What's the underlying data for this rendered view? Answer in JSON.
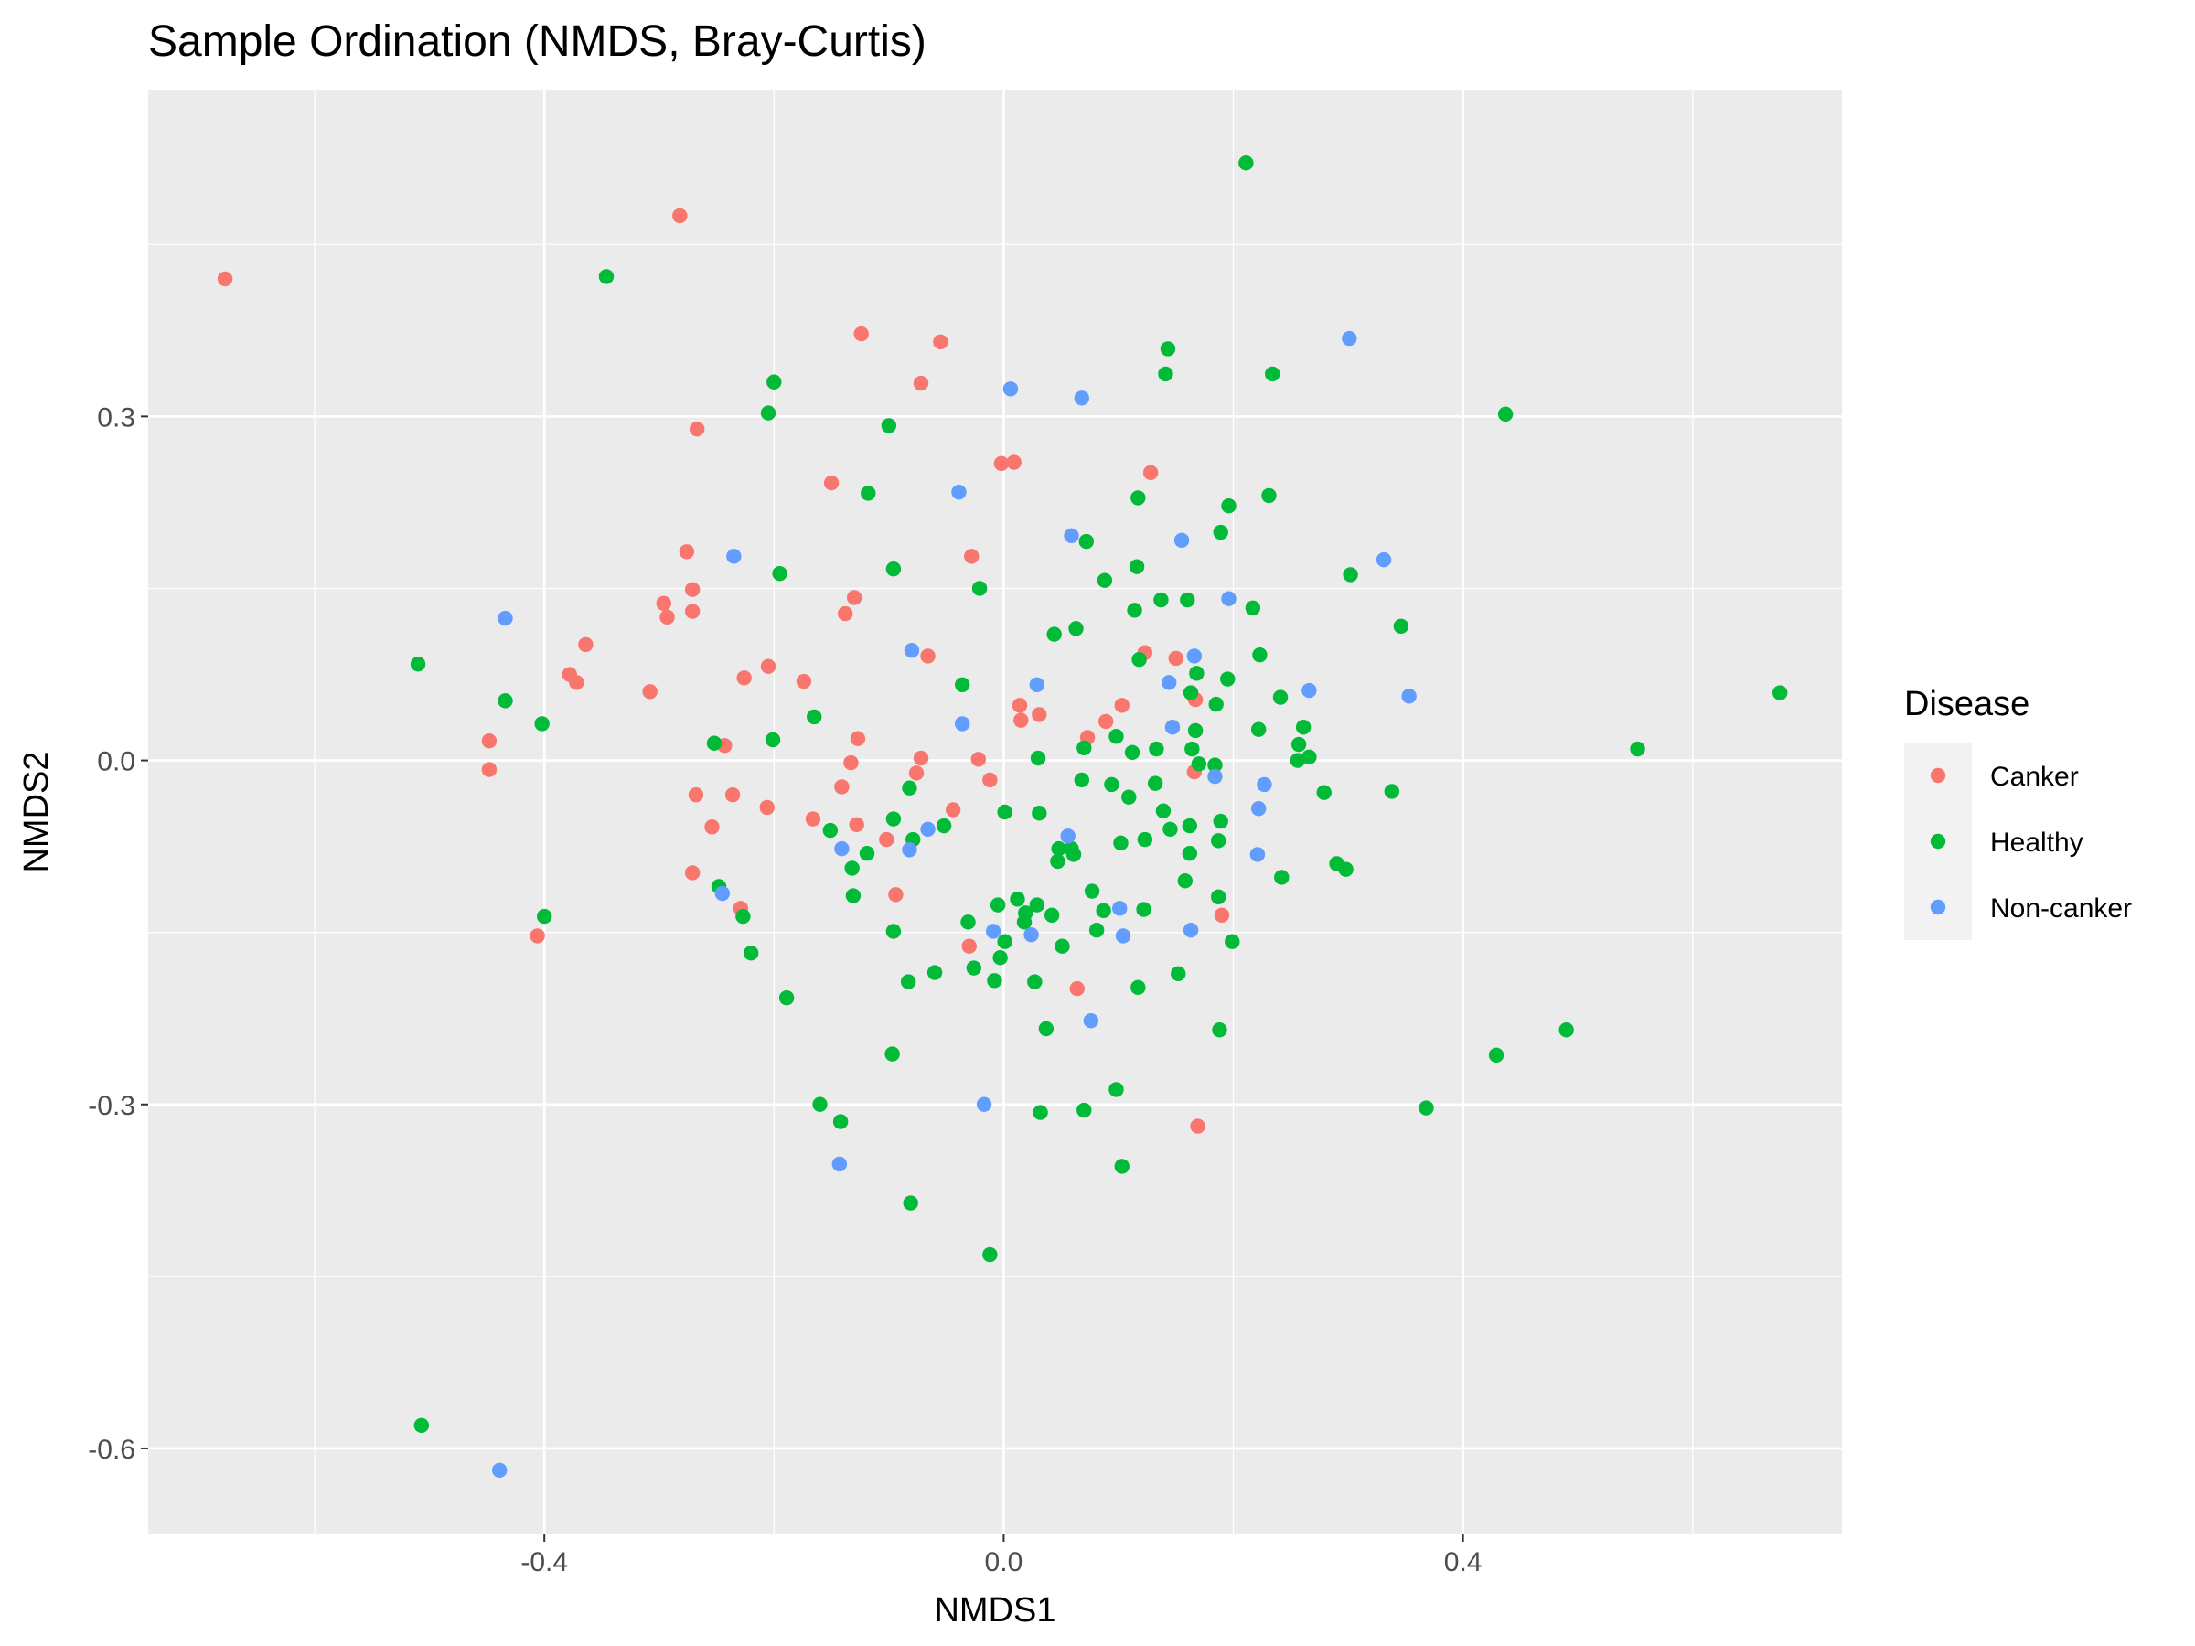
{
  "chart_data": {
    "type": "scatter",
    "title": "Sample Ordination (NMDS, Bray-Curtis)",
    "xlabel": "NMDS1",
    "ylabel": "NMDS2",
    "xlim": [
      -0.745,
      0.73
    ],
    "ylim": [
      -0.675,
      0.585
    ],
    "xticks": [
      -0.4,
      0.0,
      0.4
    ],
    "xtick_labels": [
      "-0.4",
      "0.0",
      "0.4"
    ],
    "yticks": [
      -0.6,
      -0.3,
      0.0,
      0.3
    ],
    "ytick_labels": [
      "-0.6",
      "-0.3",
      "0.0",
      "0.3"
    ],
    "x_minor": [
      -0.6,
      -0.2,
      0.2,
      0.6
    ],
    "y_minor": [
      -0.45,
      -0.15,
      0.15,
      0.45
    ],
    "grid": true,
    "panel_background": "#ebebeb",
    "legend": {
      "title": "Disease",
      "position": "right"
    },
    "series": [
      {
        "name": "Canker",
        "color": "#f8766d",
        "points": [
          [
            -0.678,
            0.42
          ],
          [
            -0.282,
            0.475
          ],
          [
            -0.124,
            0.372
          ],
          [
            -0.055,
            0.365
          ],
          [
            -0.072,
            0.329
          ],
          [
            -0.267,
            0.289
          ],
          [
            -0.15,
            0.242
          ],
          [
            -0.002,
            0.259
          ],
          [
            0.009,
            0.26
          ],
          [
            0.128,
            0.251
          ],
          [
            -0.276,
            0.182
          ],
          [
            -0.028,
            0.178
          ],
          [
            -0.13,
            0.142
          ],
          [
            -0.138,
            0.128
          ],
          [
            -0.296,
            0.137
          ],
          [
            -0.293,
            0.125
          ],
          [
            -0.271,
            0.149
          ],
          [
            -0.271,
            0.13
          ],
          [
            -0.364,
            0.101
          ],
          [
            -0.378,
            0.075
          ],
          [
            -0.372,
            0.068
          ],
          [
            -0.308,
            0.06
          ],
          [
            -0.066,
            0.091
          ],
          [
            -0.205,
            0.082
          ],
          [
            -0.226,
            0.072
          ],
          [
            -0.174,
            0.069
          ],
          [
            0.014,
            0.048
          ],
          [
            0.031,
            0.04
          ],
          [
            0.103,
            0.048
          ],
          [
            0.015,
            0.035
          ],
          [
            0.089,
            0.034
          ],
          [
            0.073,
            0.02
          ],
          [
            0.123,
            0.094
          ],
          [
            0.15,
            0.089
          ],
          [
            0.167,
            0.053
          ],
          [
            -0.448,
            0.017
          ],
          [
            -0.127,
            0.019
          ],
          [
            -0.243,
            0.013
          ],
          [
            -0.448,
            -0.008
          ],
          [
            -0.072,
            0.002
          ],
          [
            -0.022,
            0.001
          ],
          [
            -0.133,
            -0.002
          ],
          [
            -0.076,
            -0.011
          ],
          [
            -0.012,
            -0.017
          ],
          [
            -0.141,
            -0.023
          ],
          [
            -0.268,
            -0.03
          ],
          [
            -0.236,
            -0.03
          ],
          [
            -0.206,
            -0.041
          ],
          [
            -0.166,
            -0.051
          ],
          [
            -0.128,
            -0.056
          ],
          [
            -0.254,
            -0.058
          ],
          [
            -0.044,
            -0.043
          ],
          [
            -0.102,
            -0.069
          ],
          [
            0.166,
            -0.01
          ],
          [
            -0.271,
            -0.098
          ],
          [
            -0.094,
            -0.117
          ],
          [
            -0.229,
            -0.129
          ],
          [
            -0.406,
            -0.153
          ],
          [
            0.19,
            -0.135
          ],
          [
            -0.03,
            -0.162
          ],
          [
            0.064,
            -0.199
          ],
          [
            0.169,
            -0.319
          ]
        ]
      },
      {
        "name": "Healthy",
        "color": "#00ba38",
        "points": [
          [
            0.211,
            0.521
          ],
          [
            -0.346,
            0.422
          ],
          [
            0.143,
            0.359
          ],
          [
            0.141,
            0.337
          ],
          [
            0.234,
            0.337
          ],
          [
            -0.2,
            0.33
          ],
          [
            0.437,
            0.302
          ],
          [
            -0.205,
            0.303
          ],
          [
            -0.1,
            0.292
          ],
          [
            -0.118,
            0.233
          ],
          [
            0.117,
            0.229
          ],
          [
            0.231,
            0.231
          ],
          [
            0.196,
            0.222
          ],
          [
            0.189,
            0.199
          ],
          [
            0.072,
            0.191
          ],
          [
            -0.195,
            0.163
          ],
          [
            0.116,
            0.169
          ],
          [
            -0.096,
            0.167
          ],
          [
            0.302,
            0.162
          ],
          [
            0.088,
            0.157
          ],
          [
            -0.021,
            0.15
          ],
          [
            0.137,
            0.14
          ],
          [
            0.16,
            0.14
          ],
          [
            0.217,
            0.133
          ],
          [
            0.114,
            0.131
          ],
          [
            0.063,
            0.115
          ],
          [
            0.346,
            0.117
          ],
          [
            0.044,
            0.11
          ],
          [
            0.118,
            0.088
          ],
          [
            0.223,
            0.092
          ],
          [
            -0.51,
            0.084
          ],
          [
            0.195,
            0.071
          ],
          [
            0.168,
            0.076
          ],
          [
            -0.036,
            0.066
          ],
          [
            0.163,
            0.059
          ],
          [
            0.241,
            0.055
          ],
          [
            -0.434,
            0.052
          ],
          [
            0.185,
            0.049
          ],
          [
            0.676,
            0.059
          ],
          [
            -0.402,
            0.032
          ],
          [
            -0.165,
            0.038
          ],
          [
            0.261,
            0.029
          ],
          [
            0.222,
            0.027
          ],
          [
            0.167,
            0.026
          ],
          [
            -0.201,
            0.018
          ],
          [
            0.098,
            0.021
          ],
          [
            0.552,
            0.01
          ],
          [
            0.257,
            0.014
          ],
          [
            0.07,
            0.011
          ],
          [
            0.133,
            0.01
          ],
          [
            0.164,
            0.01
          ],
          [
            -0.252,
            0.015
          ],
          [
            0.112,
            0.007
          ],
          [
            0.03,
            0.002
          ],
          [
            0.266,
            0.003
          ],
          [
            0.256,
            0.0
          ],
          [
            0.17,
            -0.003
          ],
          [
            0.184,
            -0.004
          ],
          [
            0.068,
            -0.017
          ],
          [
            0.094,
            -0.021
          ],
          [
            0.132,
            -0.02
          ],
          [
            -0.082,
            -0.024
          ],
          [
            0.338,
            -0.027
          ],
          [
            0.279,
            -0.028
          ],
          [
            0.109,
            -0.032
          ],
          [
            0.001,
            -0.045
          ],
          [
            0.031,
            -0.046
          ],
          [
            0.139,
            -0.044
          ],
          [
            -0.096,
            -0.051
          ],
          [
            0.189,
            -0.053
          ],
          [
            -0.151,
            -0.061
          ],
          [
            -0.052,
            -0.057
          ],
          [
            0.145,
            -0.06
          ],
          [
            0.162,
            -0.057
          ],
          [
            0.123,
            -0.069
          ],
          [
            -0.079,
            -0.069
          ],
          [
            0.048,
            -0.077
          ],
          [
            0.059,
            -0.077
          ],
          [
            0.102,
            -0.072
          ],
          [
            0.187,
            -0.07
          ],
          [
            -0.119,
            -0.081
          ],
          [
            0.162,
            -0.081
          ],
          [
            0.047,
            -0.088
          ],
          [
            0.061,
            -0.082
          ],
          [
            -0.132,
            -0.094
          ],
          [
            0.29,
            -0.09
          ],
          [
            0.298,
            -0.095
          ],
          [
            0.158,
            -0.105
          ],
          [
            0.242,
            -0.102
          ],
          [
            -0.248,
            -0.11
          ],
          [
            0.077,
            -0.114
          ],
          [
            0.012,
            -0.121
          ],
          [
            0.029,
            -0.126
          ],
          [
            0.019,
            -0.133
          ],
          [
            -0.131,
            -0.118
          ],
          [
            0.187,
            -0.119
          ],
          [
            -0.005,
            -0.126
          ],
          [
            0.122,
            -0.13
          ],
          [
            0.087,
            -0.131
          ],
          [
            -0.4,
            -0.136
          ],
          [
            -0.227,
            -0.136
          ],
          [
            -0.031,
            -0.141
          ],
          [
            0.042,
            -0.135
          ],
          [
            0.051,
            -0.162
          ],
          [
            0.018,
            -0.141
          ],
          [
            -0.096,
            -0.149
          ],
          [
            0.199,
            -0.158
          ],
          [
            0.001,
            -0.158
          ],
          [
            -0.22,
            -0.168
          ],
          [
            -0.003,
            -0.172
          ],
          [
            0.081,
            -0.148
          ],
          [
            -0.026,
            -0.181
          ],
          [
            -0.06,
            -0.185
          ],
          [
            0.152,
            -0.186
          ],
          [
            -0.083,
            -0.193
          ],
          [
            -0.008,
            -0.192
          ],
          [
            0.027,
            -0.193
          ],
          [
            0.117,
            -0.198
          ],
          [
            -0.189,
            -0.207
          ],
          [
            0.188,
            -0.235
          ],
          [
            0.037,
            -0.234
          ],
          [
            0.49,
            -0.235
          ],
          [
            -0.097,
            -0.256
          ],
          [
            0.429,
            -0.257
          ],
          [
            0.098,
            -0.287
          ],
          [
            -0.16,
            -0.3
          ],
          [
            0.368,
            -0.303
          ],
          [
            0.07,
            -0.305
          ],
          [
            0.032,
            -0.307
          ],
          [
            -0.142,
            -0.315
          ],
          [
            0.103,
            -0.354
          ],
          [
            -0.081,
            -0.386
          ],
          [
            -0.012,
            -0.431
          ],
          [
            -0.507,
            -0.58
          ]
        ]
      },
      {
        "name": "Non-canker",
        "color": "#619cff",
        "points": [
          [
            0.301,
            0.368
          ],
          [
            0.006,
            0.324
          ],
          [
            0.068,
            0.316
          ],
          [
            -0.039,
            0.234
          ],
          [
            0.059,
            0.196
          ],
          [
            0.155,
            0.192
          ],
          [
            -0.235,
            0.178
          ],
          [
            0.331,
            0.175
          ],
          [
            0.196,
            0.141
          ],
          [
            -0.434,
            0.124
          ],
          [
            -0.08,
            0.096
          ],
          [
            0.166,
            0.091
          ],
          [
            0.029,
            0.066
          ],
          [
            0.144,
            0.068
          ],
          [
            0.353,
            0.056
          ],
          [
            0.266,
            0.061
          ],
          [
            -0.036,
            0.032
          ],
          [
            0.147,
            0.029
          ],
          [
            0.184,
            -0.014
          ],
          [
            0.227,
            -0.021
          ],
          [
            0.222,
            -0.042
          ],
          [
            0.056,
            -0.066
          ],
          [
            -0.141,
            -0.077
          ],
          [
            -0.082,
            -0.078
          ],
          [
            -0.066,
            -0.06
          ],
          [
            0.221,
            -0.082
          ],
          [
            -0.245,
            -0.116
          ],
          [
            0.101,
            -0.129
          ],
          [
            0.163,
            -0.148
          ],
          [
            -0.009,
            -0.149
          ],
          [
            0.024,
            -0.152
          ],
          [
            0.104,
            -0.153
          ],
          [
            0.076,
            -0.227
          ],
          [
            -0.017,
            -0.3
          ],
          [
            -0.143,
            -0.352
          ],
          [
            -0.439,
            -0.619
          ]
        ]
      }
    ]
  }
}
